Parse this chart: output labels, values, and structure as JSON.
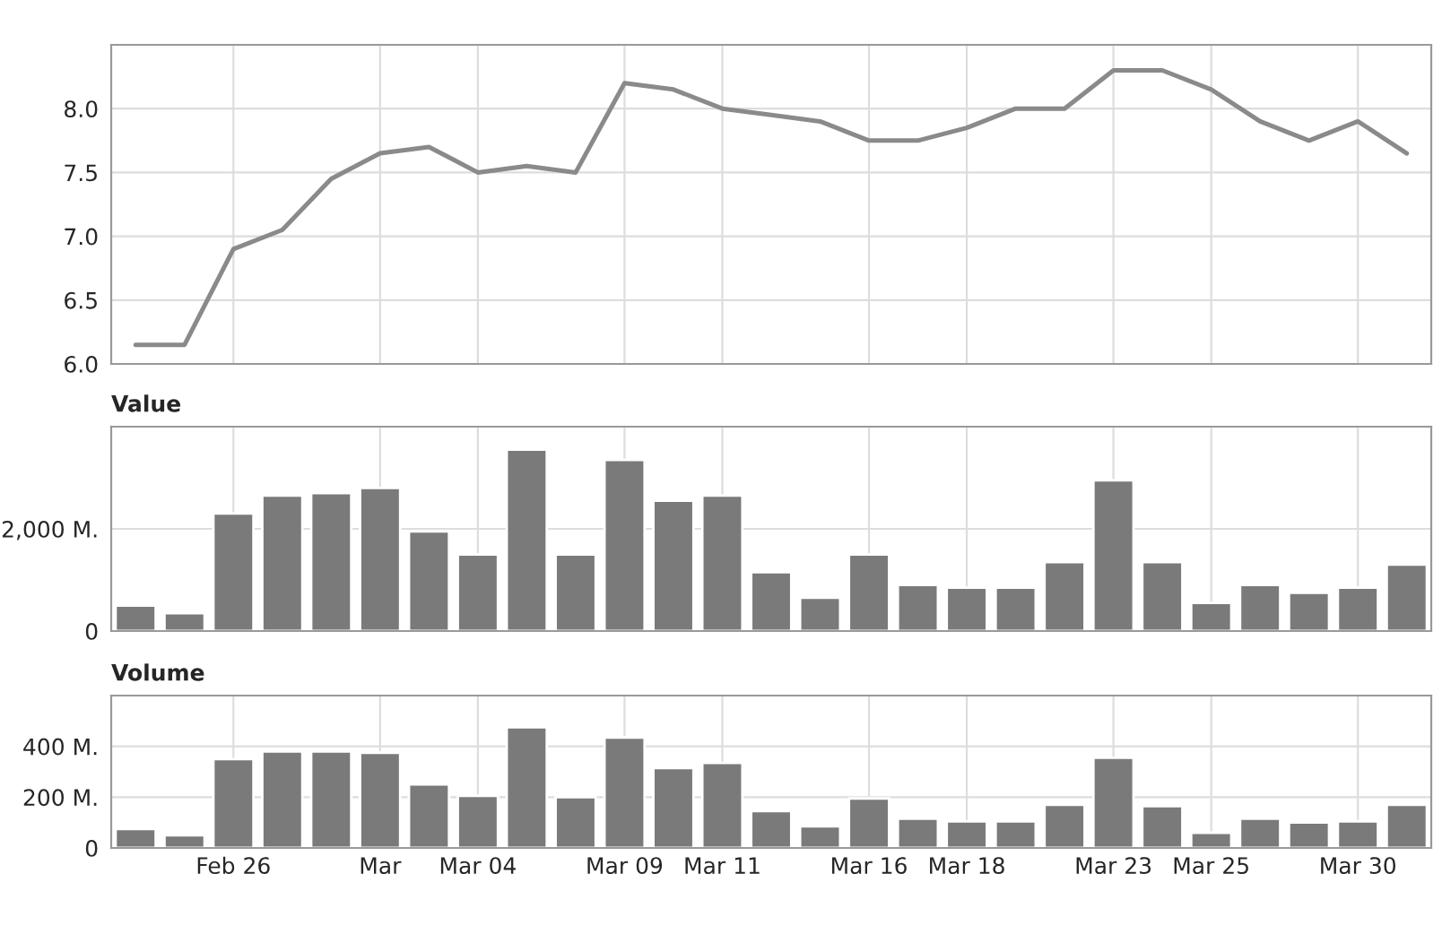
{
  "chart_data": [
    {
      "type": "line",
      "categories": [
        null,
        null,
        null,
        null,
        null,
        null,
        null,
        null,
        null,
        null,
        null,
        null,
        null,
        null,
        null,
        null,
        null,
        null,
        null,
        null,
        null,
        null,
        null,
        null,
        null,
        null,
        null
      ],
      "series": [
        {
          "color": "#8a8a8a",
          "values": [
            6.15,
            6.15,
            6.9,
            7.05,
            7.45,
            7.65,
            7.7,
            7.5,
            7.55,
            7.5,
            8.2,
            8.15,
            8.0,
            7.95,
            7.9,
            7.75,
            7.75,
            7.85,
            8.0,
            8.0,
            8.3,
            8.3,
            8.15,
            7.9,
            7.75,
            7.9,
            7.65
          ]
        }
      ],
      "ylim": [
        6.0,
        8.5
      ],
      "yticks": [
        {
          "value": 6.0,
          "label": "6.0"
        },
        {
          "value": 6.5,
          "label": "6.5"
        },
        {
          "value": 7.0,
          "label": "7.0"
        },
        {
          "value": 7.5,
          "label": "7.5"
        },
        {
          "value": 8.0,
          "label": "8.0"
        }
      ],
      "grid": true,
      "tick_labels": "y",
      "line_style": "solid",
      "marker": "none"
    },
    {
      "type": "bar",
      "title": "Value",
      "categories": [
        null,
        null,
        null,
        null,
        null,
        null,
        null,
        null,
        null,
        null,
        null,
        null,
        null,
        null,
        null,
        null,
        null,
        null,
        null,
        null,
        null,
        null,
        null,
        null,
        null,
        null,
        null
      ],
      "series": [
        {
          "color": "#7a7a7a",
          "values": [
            500,
            350,
            2300,
            2650,
            2700,
            2800,
            1950,
            1500,
            3550,
            1500,
            3350,
            2550,
            2650,
            1150,
            650,
            1500,
            900,
            850,
            850,
            1350,
            2950,
            1350,
            550,
            900,
            750,
            850,
            1300
          ]
        }
      ],
      "ylim": [
        0,
        4000
      ],
      "yticks": [
        {
          "value": 0,
          "label": "0"
        },
        {
          "value": 2000,
          "label": "2,000 M."
        }
      ],
      "grid": true,
      "tick_labels": "y"
    },
    {
      "type": "bar",
      "title": "Volume",
      "categories": [
        null,
        null,
        "Feb 26",
        null,
        null,
        "Mar",
        null,
        "Mar 04",
        null,
        null,
        "Mar 09",
        null,
        "Mar 11",
        null,
        null,
        "Mar 16",
        null,
        "Mar 18",
        null,
        null,
        "Mar 23",
        null,
        "Mar 25",
        null,
        null,
        "Mar 30",
        null
      ],
      "series": [
        {
          "color": "#7a7a7a",
          "values": [
            75,
            50,
            350,
            380,
            380,
            375,
            250,
            205,
            475,
            200,
            435,
            315,
            335,
            145,
            85,
            195,
            115,
            105,
            105,
            170,
            355,
            165,
            60,
            115,
            100,
            105,
            170
          ]
        }
      ],
      "ylim": [
        0,
        600
      ],
      "yticks": [
        {
          "value": 0,
          "label": "0"
        },
        {
          "value": 200,
          "label": "200 M."
        },
        {
          "value": 400,
          "label": "400 M."
        }
      ],
      "grid": true
    }
  ]
}
